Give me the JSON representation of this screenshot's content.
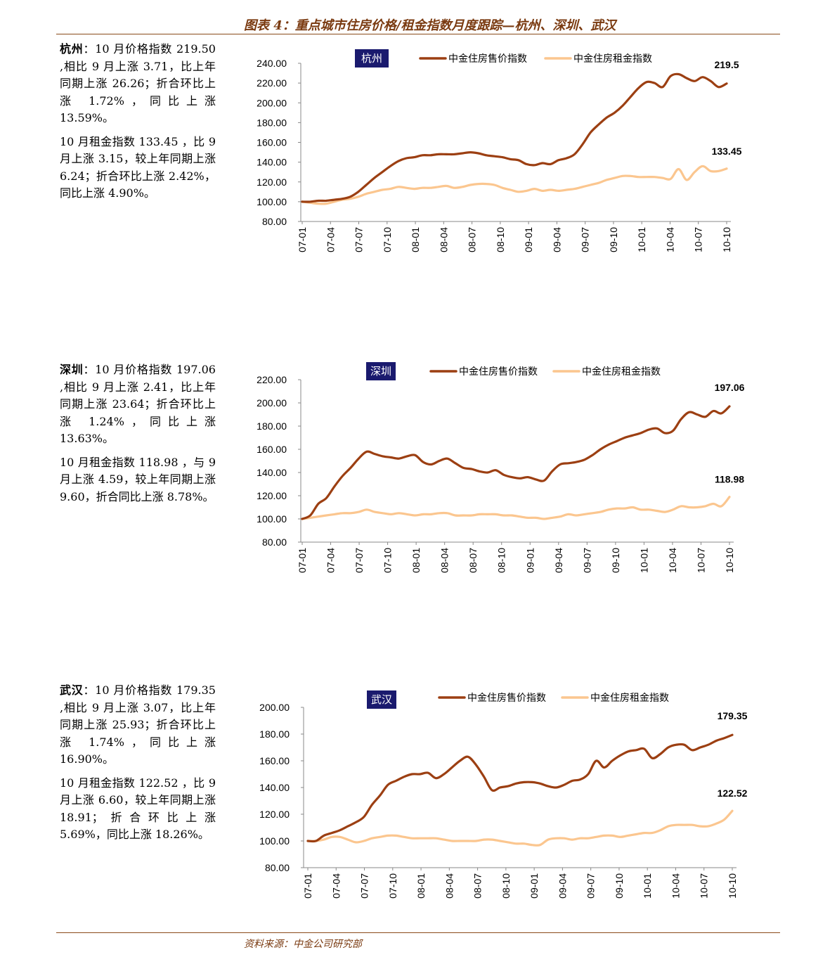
{
  "header": {
    "title": "图表 4：重点城市住房价格/租金指数月度跟踪—杭州、深圳、武汉"
  },
  "footer": {
    "source": "资料来源：中金公司研究部"
  },
  "descriptions": [
    {
      "city_label": "杭州",
      "p1": "：10 月价格指数 219.50 ,相比 9 月上涨 3.71，比上年同期上涨 26.26；折合环比上涨 1.72%，同比上涨 13.59%。",
      "p2": "10 月租金指数 133.45 ，比 9 月上涨 3.15，较上年同期上涨 6.24；折合环比上涨 2.42%，同比上涨 4.90%。"
    },
    {
      "city_label": "深圳",
      "p1": "：10 月价格指数 197.06 ,相比 9 月上涨 2.41，比上年同期上涨 23.64；折合环比上涨 1.24%，同比上涨 13.63%。",
      "p2": "10 月租金指数 118.98 ，与 9 月上涨 4.59，较上年同期上涨 9.60，折合同比上涨 8.78%。"
    },
    {
      "city_label": "武汉",
      "p1": "：10 月价格指数 179.35 ,相比 9 月上涨 3.07，比上年同期上涨 25.93；折合环比上涨 1.74%，同比上涨 16.90%。",
      "p2": "10 月租金指数 122.52 ，比 9 月上涨 6.60，较上年同期上涨 18.91；折合环比上涨 5.69%，同比上涨 18.26%。"
    }
  ],
  "colors": {
    "price": "#9c3f12",
    "rent": "#fbc68f",
    "badge_bg": "#1a1a6e",
    "axis": "#888888",
    "title": "#7a3a10"
  },
  "chart_data": [
    {
      "type": "line",
      "badge": "杭州",
      "x_ticks": [
        "07-01",
        "07-04",
        "07-07",
        "07-10",
        "08-01",
        "08-04",
        "08-07",
        "08-10",
        "09-01",
        "09-04",
        "09-07",
        "09-10",
        "10-01",
        "10-04",
        "10-07",
        "10-10"
      ],
      "ylim": [
        80,
        240
      ],
      "y_ticks": [
        "80.00",
        "100.00",
        "120.00",
        "140.00",
        "160.00",
        "180.00",
        "200.00",
        "220.00",
        "240.00"
      ],
      "series": [
        {
          "name": "中金住房售价指数",
          "end_label": "219.5",
          "values": [
            100,
            100,
            101,
            101,
            102,
            103,
            105,
            110,
            117,
            124,
            130,
            136,
            141,
            144,
            145,
            147,
            147,
            148,
            148,
            148,
            149,
            150,
            149,
            147,
            146,
            145,
            143,
            142,
            138,
            137,
            139,
            138,
            142,
            144,
            148,
            158,
            170,
            178,
            185,
            190,
            197,
            206,
            215,
            221,
            220,
            216,
            227,
            229,
            225,
            222,
            226,
            222,
            216,
            219.5
          ]
        },
        {
          "name": "中金住房租金指数",
          "end_label": "133.45",
          "values": [
            100,
            99,
            98,
            98,
            100,
            102,
            103,
            105,
            108,
            110,
            112,
            113,
            115,
            114,
            113,
            114,
            114,
            115,
            116,
            114,
            115,
            117,
            118,
            118,
            117,
            114,
            112,
            110,
            111,
            113,
            111,
            112,
            111,
            112,
            113,
            115,
            117,
            119,
            122,
            124,
            126,
            126,
            125,
            125,
            125,
            124,
            123,
            133,
            122,
            130,
            136,
            131,
            131,
            133.45
          ]
        }
      ]
    },
    {
      "type": "line",
      "badge": "深圳",
      "x_ticks": [
        "07-01",
        "07-04",
        "07-07",
        "07-10",
        "08-01",
        "08-04",
        "08-07",
        "08-10",
        "09-01",
        "09-04",
        "09-07",
        "09-10",
        "10-01",
        "10-04",
        "10-07",
        "10-10"
      ],
      "ylim": [
        80,
        220
      ],
      "y_ticks": [
        "80.00",
        "100.00",
        "120.00",
        "140.00",
        "160.00",
        "180.00",
        "200.00",
        "220.00"
      ],
      "series": [
        {
          "name": "中金住房售价指数",
          "end_label": "197.06",
          "values": [
            100,
            103,
            113,
            118,
            128,
            137,
            144,
            152,
            158,
            156,
            154,
            153,
            152,
            154,
            155,
            149,
            147,
            150,
            152,
            148,
            144,
            143,
            141,
            140,
            142,
            138,
            136,
            135,
            136,
            134,
            133,
            141,
            147,
            148,
            149,
            151,
            155,
            160,
            164,
            167,
            170,
            172,
            174,
            177,
            178,
            174,
            176,
            186,
            192,
            190,
            188,
            193,
            191,
            197.06
          ]
        },
        {
          "name": "中金住房租金指数",
          "end_label": "118.98",
          "values": [
            100,
            101,
            102,
            103,
            104,
            105,
            105,
            106,
            108,
            106,
            105,
            104,
            105,
            104,
            103,
            104,
            104,
            105,
            105,
            103,
            103,
            103,
            104,
            104,
            104,
            103,
            103,
            102,
            101,
            101,
            100,
            101,
            102,
            104,
            103,
            104,
            105,
            106,
            108,
            109,
            109,
            110,
            108,
            108,
            107,
            106,
            108,
            111,
            110,
            110,
            111,
            113,
            111,
            118.98
          ]
        }
      ]
    },
    {
      "type": "line",
      "badge": "武汉",
      "x_ticks": [
        "07-01",
        "07-04",
        "07-07",
        "07-10",
        "08-01",
        "08-04",
        "08-07",
        "08-10",
        "09-01",
        "09-04",
        "09-07",
        "09-10",
        "10-01",
        "10-04",
        "10-07",
        "10-10"
      ],
      "ylim": [
        80,
        200
      ],
      "y_ticks": [
        "80.00",
        "100.00",
        "120.00",
        "140.00",
        "160.00",
        "180.00",
        "200.00"
      ],
      "series": [
        {
          "name": "中金住房售价指数",
          "end_label": "179.35",
          "values": [
            100,
            100,
            104,
            106,
            108,
            111,
            114,
            118,
            127,
            134,
            142,
            145,
            148,
            150,
            150,
            151,
            147,
            150,
            155,
            160,
            163,
            157,
            148,
            138,
            140,
            141,
            143,
            144,
            144,
            143,
            141,
            140,
            142,
            145,
            146,
            150,
            160,
            155,
            160,
            164,
            167,
            168,
            169,
            162,
            165,
            170,
            172,
            172,
            168,
            170,
            172,
            175,
            177,
            179.35
          ]
        },
        {
          "name": "中金住房租金指数",
          "end_label": "122.52",
          "values": [
            100,
            100,
            101,
            103,
            103,
            101,
            99,
            100,
            102,
            103,
            104,
            104,
            103,
            102,
            102,
            102,
            102,
            101,
            100,
            100,
            100,
            100,
            101,
            101,
            100,
            99,
            98,
            98,
            97,
            97,
            101,
            102,
            102,
            101,
            102,
            102,
            103,
            104,
            104,
            103,
            104,
            105,
            106,
            106,
            108,
            111,
            112,
            112,
            112,
            111,
            111,
            113,
            116,
            122.52
          ]
        }
      ]
    }
  ]
}
